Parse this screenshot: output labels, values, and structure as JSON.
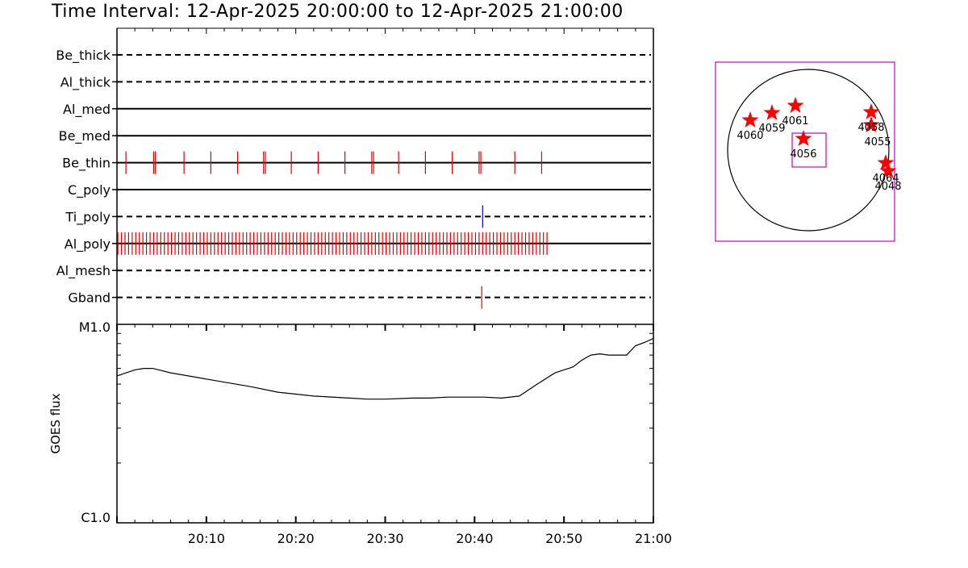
{
  "title": "Time Interval: 12-Apr-2025 20:00:00 to 12-Apr-2025 21:00:00",
  "chart_data": [
    {
      "type": "timeline",
      "x_range": [
        "20:00",
        "21:00"
      ],
      "channels": [
        {
          "name": "Be_thick",
          "style": "dashed",
          "events": []
        },
        {
          "name": "Al_thick",
          "style": "dashed",
          "events": []
        },
        {
          "name": "Al_med",
          "style": "solid",
          "events": []
        },
        {
          "name": "Be_med",
          "style": "solid",
          "events": []
        },
        {
          "name": "Be_thin",
          "style": "solid",
          "color": "#e00000",
          "events": [
            1.0,
            4.1,
            4.3,
            7.5,
            10.5,
            13.5,
            16.4,
            16.6,
            19.5,
            22.5,
            25.5,
            28.5,
            28.7,
            31.5,
            34.5,
            37.5,
            40.5,
            40.7,
            44.5,
            47.5
          ]
        },
        {
          "name": "C_poly",
          "style": "solid",
          "events": []
        },
        {
          "name": "Ti_poly",
          "style": "dashed",
          "color": "#0000c0",
          "events": [
            40.9
          ]
        },
        {
          "name": "Al_poly",
          "style": "solid",
          "color": "#e00000",
          "events_range": [
            0.1,
            48.3
          ],
          "events_step": 0.4
        },
        {
          "name": "Al_mesh",
          "style": "dashed",
          "events": []
        },
        {
          "name": "Gband",
          "style": "dashed",
          "color": "#e00000",
          "events": [
            40.8
          ]
        }
      ]
    },
    {
      "type": "line",
      "ylabel": "GOES flux",
      "yscale": "log",
      "y_tick_labels": [
        "C1.0",
        "M1.0"
      ],
      "ylim": [
        1e-06,
        1e-05
      ],
      "x_tick_labels": [
        "20:10",
        "20:20",
        "20:30",
        "20:40",
        "20:50",
        "21:00"
      ],
      "xlim": [
        0,
        60
      ],
      "series": [
        {
          "x": [
            0,
            2,
            3,
            4,
            6,
            10,
            15,
            18,
            22,
            26,
            28,
            30,
            33,
            35,
            37,
            41,
            43,
            45,
            47,
            49,
            50,
            51,
            52,
            53,
            54,
            55,
            56,
            57,
            58,
            59,
            60
          ],
          "y": [
            5.5e-06,
            5.9e-06,
            6e-06,
            6e-06,
            5.7e-06,
            5.3e-06,
            4.85e-06,
            4.55e-06,
            4.35e-06,
            4.25e-06,
            4.2e-06,
            4.2e-06,
            4.25e-06,
            4.25e-06,
            4.3e-06,
            4.3e-06,
            4.25e-06,
            4.35e-06,
            5e-06,
            5.7e-06,
            5.9e-06,
            6.1e-06,
            6.6e-06,
            7e-06,
            7.1e-06,
            7e-06,
            7e-06,
            7e-06,
            7.8e-06,
            8.1e-06,
            8.5e-06
          ]
        }
      ]
    },
    {
      "type": "scatter",
      "note_labels": [
        "4060",
        "4059",
        "4061",
        "4056",
        "4058",
        "4055",
        "4064",
        "4048"
      ],
      "points": [
        {
          "label": "4060",
          "x": -0.72,
          "y": 0.37
        },
        {
          "label": "4059",
          "x": -0.45,
          "y": 0.46
        },
        {
          "label": "4061",
          "x": -0.16,
          "y": 0.55
        },
        {
          "label": "4056",
          "x": -0.06,
          "y": 0.14
        },
        {
          "label": "4058",
          "x": 0.78,
          "y": 0.47
        },
        {
          "label": "4055",
          "x": 0.78,
          "y": 0.31
        },
        {
          "label": "4064",
          "x": 0.96,
          "y": -0.16
        },
        {
          "label": "4048",
          "x": 0.99,
          "y": -0.26
        }
      ],
      "colors": {
        "frame": "#cc00cc",
        "star": "#ff0000",
        "disk": "#000000"
      }
    }
  ]
}
